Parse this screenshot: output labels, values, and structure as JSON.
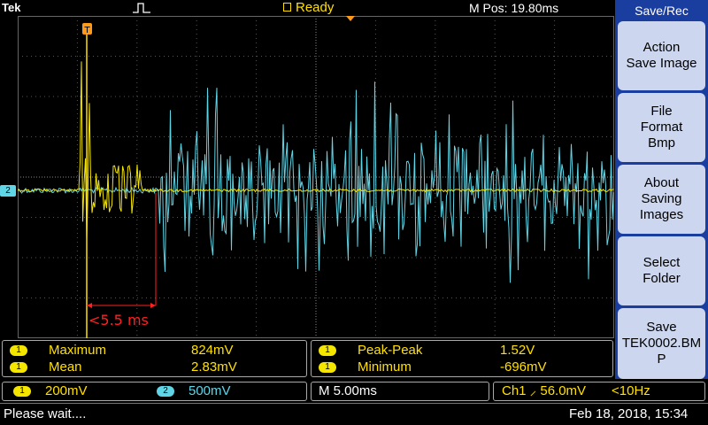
{
  "header": {
    "brand": "Tek",
    "status": "Ready",
    "m_pos": "M Pos: 19.80ms"
  },
  "annotation": {
    "text": "<5.5 ms"
  },
  "grid_marker": {
    "channel": "2"
  },
  "menu": {
    "title": "Save/Rec",
    "buttons": [
      {
        "label": "Action\nSave Image"
      },
      {
        "label": "File\nFormat\nBmp"
      },
      {
        "label": "About\nSaving\nImages"
      },
      {
        "label": "Select\nFolder"
      },
      {
        "label": "Save\nTEK0002.BM\nP"
      }
    ]
  },
  "measurements": {
    "left": [
      {
        "channel": "1",
        "label": "Maximum",
        "value": "824mV"
      },
      {
        "channel": "1",
        "label": "Mean",
        "value": "2.83mV"
      }
    ],
    "right": [
      {
        "channel": "1",
        "label": "Peak-Peak",
        "value": "1.52V"
      },
      {
        "channel": "1",
        "label": "Minimum",
        "value": "-696mV"
      }
    ]
  },
  "channels": {
    "ch1": {
      "badge": "1",
      "scale": "200mV"
    },
    "ch2": {
      "badge": "2",
      "scale": "500mV"
    },
    "timebase": "M 5.00ms",
    "trigger": "Ch1 ⸝ 56.0mV",
    "bandwidth": "<10Hz"
  },
  "statusbar": {
    "message": "Please wait....",
    "datetime": "Feb 18, 2018, 15:34"
  },
  "colors": {
    "ch1": "#f5e600",
    "ch2": "#5fd5e6",
    "menu_bg": "#1a3ea0",
    "annotation": "#ff2020"
  }
}
